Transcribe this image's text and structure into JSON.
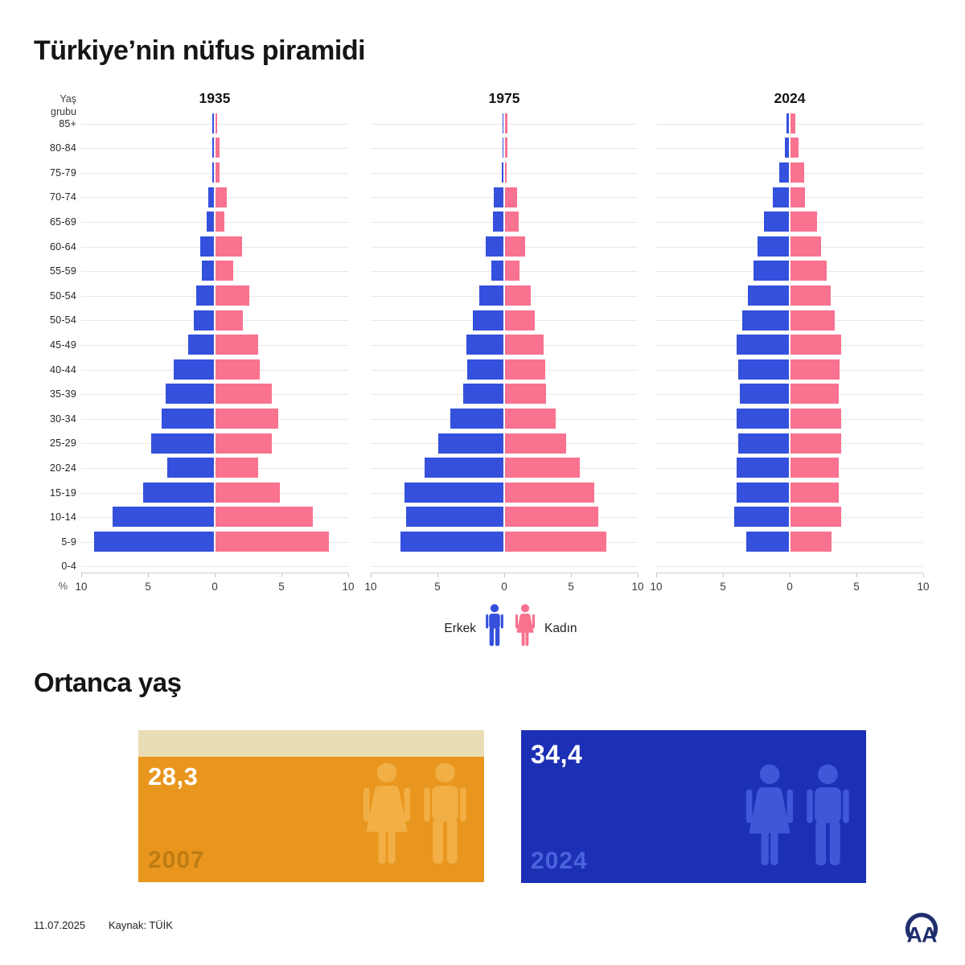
{
  "title": "Türkiye’nin nüfus piramidi",
  "y_axis": {
    "label_line1": "Yaş",
    "label_line2": "grubu",
    "unit": "%"
  },
  "age_groups": [
    "85+",
    "80-84",
    "75-79",
    "70-74",
    "65-69",
    "60-64",
    "55-59",
    "50-54",
    "50-54",
    "45-49",
    "40-44",
    "35-39",
    "30-34",
    "25-29",
    "20-24",
    "15-19",
    "10-14",
    "5-9",
    "0-4"
  ],
  "axis_ticks": [
    "10",
    "5",
    "0",
    "5",
    "10"
  ],
  "legend": {
    "male_label": "Erkek",
    "female_label": "Kadın"
  },
  "chart_data": [
    {
      "type": "bar",
      "subtype": "population-pyramid",
      "title": "1935",
      "unit": "%",
      "xlim": [
        -10,
        10
      ],
      "categories": [
        "85+",
        "80-84",
        "75-79",
        "70-74",
        "65-69",
        "60-64",
        "55-59",
        "50-54",
        "50-54",
        "45-49",
        "40-44",
        "35-39",
        "30-34",
        "25-29",
        "20-24",
        "15-19",
        "10-14",
        "5-9"
      ],
      "series": [
        {
          "name": "Erkek",
          "values": [
            0.1,
            0.1,
            0.1,
            0.45,
            0.55,
            1.05,
            0.9,
            1.3,
            1.5,
            1.9,
            3.0,
            3.6,
            3.9,
            4.7,
            3.5,
            5.3,
            7.6,
            9.0
          ]
        },
        {
          "name": "Kadın",
          "values": [
            0.15,
            0.3,
            0.3,
            0.85,
            0.65,
            2.0,
            1.35,
            2.5,
            2.05,
            3.2,
            3.3,
            4.2,
            4.7,
            4.2,
            3.2,
            4.8,
            7.3,
            8.5
          ]
        }
      ],
      "note": "0-4 row shows no bar in source graphic"
    },
    {
      "type": "bar",
      "subtype": "population-pyramid",
      "title": "1975",
      "unit": "%",
      "xlim": [
        -10,
        10
      ],
      "categories": [
        "85+",
        "80-84",
        "75-79",
        "70-74",
        "65-69",
        "60-64",
        "55-59",
        "50-54",
        "50-54",
        "45-49",
        "40-44",
        "35-39",
        "30-34",
        "25-29",
        "20-24",
        "15-19",
        "10-14",
        "5-9"
      ],
      "series": [
        {
          "name": "Erkek",
          "values": [
            0.05,
            0.05,
            0.1,
            0.7,
            0.8,
            1.3,
            0.9,
            1.8,
            2.3,
            2.8,
            2.7,
            3.0,
            4.0,
            4.9,
            5.9,
            7.4,
            7.3,
            7.7
          ]
        },
        {
          "name": "Kadın",
          "values": [
            0.2,
            0.2,
            0.15,
            0.9,
            1.0,
            1.5,
            1.1,
            1.9,
            2.2,
            2.9,
            3.0,
            3.1,
            3.8,
            4.6,
            5.6,
            6.7,
            7.0,
            7.6
          ]
        }
      ],
      "note": "0-4 row shows no bar in source graphic"
    },
    {
      "type": "bar",
      "subtype": "population-pyramid",
      "title": "2024",
      "unit": "%",
      "xlim": [
        -10,
        10
      ],
      "categories": [
        "85+",
        "80-84",
        "75-79",
        "70-74",
        "65-69",
        "60-64",
        "55-59",
        "50-54",
        "50-54",
        "45-49",
        "40-44",
        "35-39",
        "30-34",
        "25-29",
        "20-24",
        "15-19",
        "10-14",
        "5-9"
      ],
      "series": [
        {
          "name": "Erkek",
          "values": [
            0.2,
            0.3,
            0.7,
            1.2,
            1.85,
            2.35,
            2.65,
            3.1,
            3.5,
            3.9,
            3.8,
            3.7,
            3.9,
            3.8,
            3.9,
            3.9,
            4.1,
            3.2
          ]
        },
        {
          "name": "Kadın",
          "values": [
            0.35,
            0.6,
            1.0,
            1.1,
            2.0,
            2.3,
            2.7,
            3.0,
            3.3,
            3.8,
            3.7,
            3.6,
            3.8,
            3.8,
            3.6,
            3.6,
            3.8,
            3.1
          ]
        }
      ],
      "note": "0-4 row shows no bar in source graphic"
    }
  ],
  "median_age": {
    "heading": "Ortanca yaş",
    "cards": [
      {
        "value": "28,3",
        "year": "2007"
      },
      {
        "value": "34,4",
        "year": "2024"
      }
    ]
  },
  "footer": {
    "date": "11.07.2025",
    "source": "Kaynak: TÜİK",
    "logo": "AA"
  },
  "colors": {
    "male": "#3450DC",
    "female": "#F9728F",
    "grid": "#E7E7E7",
    "axis": "#C9C9C9",
    "card_2007_bg": "#E9961E",
    "card_2007_strip": "#EADDB4",
    "card_2007_icon": "#F1AF45",
    "card_2007_year": "#BE7C12",
    "card_2024_bg": "#1C30B5",
    "card_2024_icon": "#3F58D8",
    "card_2024_year": "#4A63DC",
    "logo_navy": "#1E2E6E"
  }
}
